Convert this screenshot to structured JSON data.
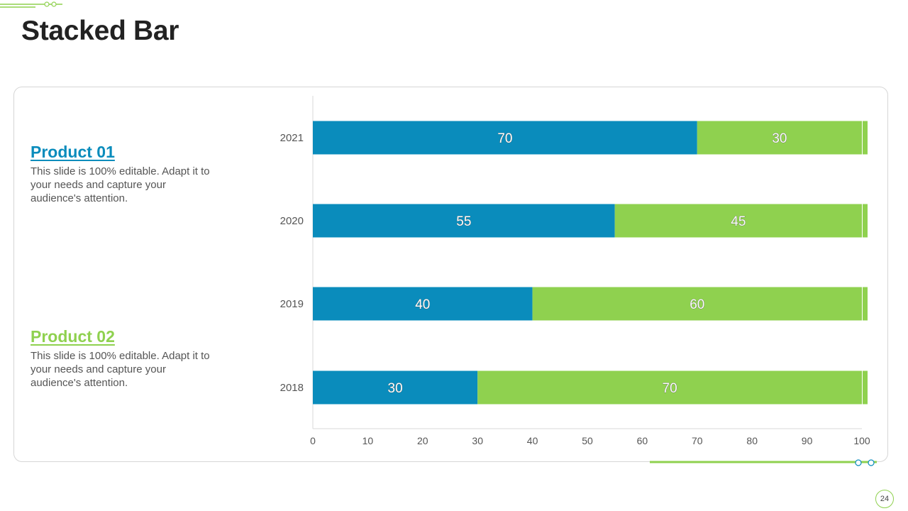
{
  "slide": {
    "title": "Stacked Bar",
    "page_number": "24"
  },
  "products": [
    {
      "heading": "Product 01",
      "description": "This slide is 100% editable. Adapt it to your needs and capture your audience's attention.",
      "color": "#0a8cbc"
    },
    {
      "heading": "Product 02",
      "description": "This slide is 100% editable. Adapt it to your needs and capture your audience's attention.",
      "color": "#8fd14f"
    }
  ],
  "chart_data": {
    "type": "bar",
    "orientation": "horizontal",
    "stacked": true,
    "title": "",
    "xlabel": "",
    "ylabel": "",
    "categories": [
      "2021",
      "2020",
      "2019",
      "2018"
    ],
    "series": [
      {
        "name": "Product 01",
        "color": "#0a8cbc",
        "values": [
          70,
          55,
          40,
          30
        ]
      },
      {
        "name": "Product 02",
        "color": "#8fd14f",
        "values": [
          30,
          45,
          60,
          70
        ]
      }
    ],
    "xlim": [
      0,
      100
    ],
    "xticks": [
      0,
      10,
      20,
      30,
      40,
      50,
      60,
      70,
      80,
      90,
      100
    ],
    "grid": false,
    "legend": "none"
  }
}
